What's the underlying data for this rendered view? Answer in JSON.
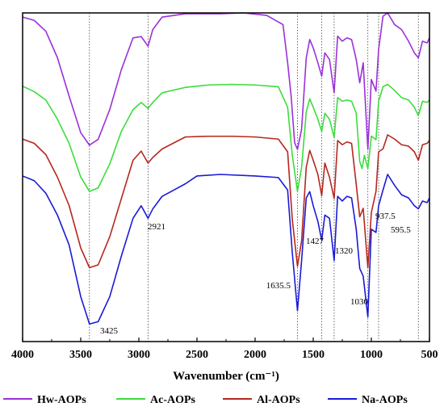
{
  "chart_data": {
    "type": "line",
    "title": "",
    "xlabel": "Wavenumber (cm⁻¹)",
    "ylabel": "",
    "xlim": [
      4000,
      500
    ],
    "x_reversed": true,
    "x_ticks": [
      "4000",
      "3500",
      "3000",
      "2500",
      "2000",
      "1500",
      "1000",
      "500"
    ],
    "y_ticks_shown": false,
    "grid": false,
    "legend_position": "bottom",
    "reference_lines": [
      3425,
      2921,
      1635.5,
      1427,
      1320,
      1030,
      937.5,
      595.5
    ],
    "annotations": [
      {
        "text": "3425",
        "x": 3425
      },
      {
        "text": "2921",
        "x": 2921
      },
      {
        "text": "1635.5",
        "x": 1635.5
      },
      {
        "text": "1427",
        "x": 1427
      },
      {
        "text": "1320",
        "x": 1320
      },
      {
        "text": "1030",
        "x": 1030
      },
      {
        "text": "937.5",
        "x": 937.5
      },
      {
        "text": "595.5",
        "x": 595.5
      }
    ],
    "series": [
      {
        "name": "Hw-AOPs",
        "color": "#9b30d9",
        "points": [
          [
            4000,
            0.975
          ],
          [
            3900,
            0.955
          ],
          [
            3800,
            0.89
          ],
          [
            3700,
            0.73
          ],
          [
            3600,
            0.5
          ],
          [
            3500,
            0.28
          ],
          [
            3425,
            0.205
          ],
          [
            3350,
            0.24
          ],
          [
            3250,
            0.42
          ],
          [
            3150,
            0.66
          ],
          [
            3050,
            0.85
          ],
          [
            2980,
            0.858
          ],
          [
            2921,
            0.8
          ],
          [
            2880,
            0.9
          ],
          [
            2800,
            0.975
          ],
          [
            2600,
            0.995
          ],
          [
            2300,
            0.995
          ],
          [
            2100,
            1.0
          ],
          [
            1900,
            0.985
          ],
          [
            1760,
            0.93
          ],
          [
            1720,
            0.7
          ],
          [
            1690,
            0.5
          ],
          [
            1660,
            0.22
          ],
          [
            1635.5,
            0.18
          ],
          [
            1600,
            0.3
          ],
          [
            1560,
            0.73
          ],
          [
            1530,
            0.84
          ],
          [
            1500,
            0.79
          ],
          [
            1460,
            0.7
          ],
          [
            1427,
            0.62
          ],
          [
            1400,
            0.76
          ],
          [
            1360,
            0.72
          ],
          [
            1320,
            0.52
          ],
          [
            1290,
            0.86
          ],
          [
            1250,
            0.83
          ],
          [
            1210,
            0.85
          ],
          [
            1170,
            0.84
          ],
          [
            1130,
            0.72
          ],
          [
            1100,
            0.58
          ],
          [
            1070,
            0.7
          ],
          [
            1030,
            0.18
          ],
          [
            1000,
            0.6
          ],
          [
            960,
            0.53
          ],
          [
            937.5,
            0.78
          ],
          [
            900,
            0.98
          ],
          [
            860,
            1.0
          ],
          [
            800,
            0.93
          ],
          [
            740,
            0.9
          ],
          [
            680,
            0.83
          ],
          [
            630,
            0.76
          ],
          [
            595.5,
            0.73
          ],
          [
            560,
            0.83
          ],
          [
            520,
            0.82
          ],
          [
            500,
            0.85
          ]
        ]
      },
      {
        "name": "Ac-AOPs",
        "color": "#3ddc3d",
        "points": [
          [
            4000,
            0.975
          ],
          [
            3900,
            0.93
          ],
          [
            3800,
            0.86
          ],
          [
            3700,
            0.7
          ],
          [
            3600,
            0.5
          ],
          [
            3500,
            0.22
          ],
          [
            3425,
            0.1
          ],
          [
            3350,
            0.13
          ],
          [
            3250,
            0.33
          ],
          [
            3150,
            0.6
          ],
          [
            3050,
            0.78
          ],
          [
            2980,
            0.84
          ],
          [
            2921,
            0.79
          ],
          [
            2880,
            0.84
          ],
          [
            2800,
            0.92
          ],
          [
            2600,
            0.965
          ],
          [
            2400,
            0.985
          ],
          [
            2200,
            0.99
          ],
          [
            2000,
            0.985
          ],
          [
            1800,
            0.97
          ],
          [
            1720,
            0.8
          ],
          [
            1680,
            0.4
          ],
          [
            1635.5,
            0.1
          ],
          [
            1600,
            0.3
          ],
          [
            1560,
            0.76
          ],
          [
            1530,
            0.87
          ],
          [
            1500,
            0.8
          ],
          [
            1460,
            0.7
          ],
          [
            1427,
            0.6
          ],
          [
            1400,
            0.75
          ],
          [
            1360,
            0.7
          ],
          [
            1320,
            0.55
          ],
          [
            1290,
            0.88
          ],
          [
            1250,
            0.85
          ],
          [
            1210,
            0.86
          ],
          [
            1170,
            0.85
          ],
          [
            1130,
            0.75
          ],
          [
            1100,
            0.35
          ],
          [
            1080,
            0.29
          ],
          [
            1060,
            0.4
          ],
          [
            1030,
            0.29
          ],
          [
            1000,
            0.56
          ],
          [
            960,
            0.53
          ],
          [
            937.5,
            0.85
          ],
          [
            900,
            0.97
          ],
          [
            860,
            0.99
          ],
          [
            800,
            0.94
          ],
          [
            740,
            0.88
          ],
          [
            680,
            0.86
          ],
          [
            630,
            0.8
          ],
          [
            595.5,
            0.73
          ],
          [
            560,
            0.85
          ],
          [
            520,
            0.84
          ],
          [
            500,
            0.86
          ]
        ]
      },
      {
        "name": "Al-AOPs",
        "color": "#b5281f",
        "points": [
          [
            4000,
            0.97
          ],
          [
            3900,
            0.94
          ],
          [
            3800,
            0.86
          ],
          [
            3700,
            0.7
          ],
          [
            3600,
            0.5
          ],
          [
            3500,
            0.2
          ],
          [
            3425,
            0.06
          ],
          [
            3350,
            0.08
          ],
          [
            3250,
            0.28
          ],
          [
            3150,
            0.55
          ],
          [
            3050,
            0.82
          ],
          [
            2980,
            0.885
          ],
          [
            2921,
            0.8
          ],
          [
            2880,
            0.84
          ],
          [
            2800,
            0.9
          ],
          [
            2600,
            0.985
          ],
          [
            2400,
            0.99
          ],
          [
            2200,
            0.99
          ],
          [
            2000,
            0.985
          ],
          [
            1800,
            0.97
          ],
          [
            1720,
            0.88
          ],
          [
            1680,
            0.4
          ],
          [
            1635.5,
            0.07
          ],
          [
            1600,
            0.25
          ],
          [
            1560,
            0.77
          ],
          [
            1530,
            0.89
          ],
          [
            1500,
            0.82
          ],
          [
            1460,
            0.72
          ],
          [
            1427,
            0.57
          ],
          [
            1400,
            0.8
          ],
          [
            1360,
            0.7
          ],
          [
            1320,
            0.55
          ],
          [
            1290,
            0.96
          ],
          [
            1250,
            0.93
          ],
          [
            1210,
            0.95
          ],
          [
            1170,
            0.94
          ],
          [
            1130,
            0.65
          ],
          [
            1100,
            0.42
          ],
          [
            1070,
            0.48
          ],
          [
            1030,
            0.06
          ],
          [
            1000,
            0.45
          ],
          [
            960,
            0.6
          ],
          [
            937.5,
            0.88
          ],
          [
            900,
            0.9
          ],
          [
            860,
            1.0
          ],
          [
            800,
            0.97
          ],
          [
            740,
            0.93
          ],
          [
            680,
            0.92
          ],
          [
            630,
            0.88
          ],
          [
            595.5,
            0.82
          ],
          [
            560,
            0.93
          ],
          [
            520,
            0.94
          ],
          [
            500,
            0.96
          ]
        ]
      },
      {
        "name": "Na-AOPs",
        "color": "#1a1ad6",
        "points": [
          [
            4000,
            0.99
          ],
          [
            3900,
            0.96
          ],
          [
            3800,
            0.88
          ],
          [
            3700,
            0.74
          ],
          [
            3600,
            0.55
          ],
          [
            3500,
            0.22
          ],
          [
            3425,
            0.045
          ],
          [
            3350,
            0.06
          ],
          [
            3250,
            0.22
          ],
          [
            3150,
            0.48
          ],
          [
            3050,
            0.72
          ],
          [
            2980,
            0.8
          ],
          [
            2921,
            0.72
          ],
          [
            2880,
            0.78
          ],
          [
            2800,
            0.86
          ],
          [
            2700,
            0.9
          ],
          [
            2600,
            0.94
          ],
          [
            2500,
            0.99
          ],
          [
            2300,
            1.0
          ],
          [
            2000,
            0.99
          ],
          [
            1800,
            0.98
          ],
          [
            1720,
            0.9
          ],
          [
            1680,
            0.5
          ],
          [
            1635.5,
            0.13
          ],
          [
            1600,
            0.45
          ],
          [
            1560,
            0.85
          ],
          [
            1530,
            0.89
          ],
          [
            1500,
            0.8
          ],
          [
            1460,
            0.7
          ],
          [
            1427,
            0.58
          ],
          [
            1400,
            0.74
          ],
          [
            1360,
            0.72
          ],
          [
            1320,
            0.45
          ],
          [
            1290,
            0.86
          ],
          [
            1250,
            0.83
          ],
          [
            1210,
            0.86
          ],
          [
            1170,
            0.85
          ],
          [
            1130,
            0.65
          ],
          [
            1100,
            0.4
          ],
          [
            1070,
            0.35
          ],
          [
            1030,
            0.09
          ],
          [
            1000,
            0.65
          ],
          [
            960,
            0.63
          ],
          [
            937.5,
            0.8
          ],
          [
            900,
            0.9
          ],
          [
            860,
            1.0
          ],
          [
            800,
            0.93
          ],
          [
            740,
            0.87
          ],
          [
            680,
            0.85
          ],
          [
            630,
            0.8
          ],
          [
            595.5,
            0.78
          ],
          [
            560,
            0.83
          ],
          [
            520,
            0.82
          ],
          [
            500,
            0.85
          ]
        ]
      }
    ]
  }
}
